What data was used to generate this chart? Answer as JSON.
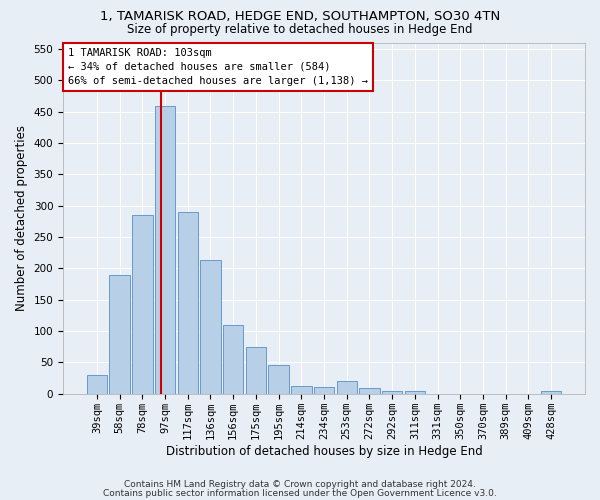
{
  "title": "1, TAMARISK ROAD, HEDGE END, SOUTHAMPTON, SO30 4TN",
  "subtitle": "Size of property relative to detached houses in Hedge End",
  "xlabel": "Distribution of detached houses by size in Hedge End",
  "ylabel": "Number of detached properties",
  "categories": [
    "39sqm",
    "58sqm",
    "78sqm",
    "97sqm",
    "117sqm",
    "136sqm",
    "156sqm",
    "175sqm",
    "195sqm",
    "214sqm",
    "234sqm",
    "253sqm",
    "272sqm",
    "292sqm",
    "311sqm",
    "331sqm",
    "350sqm",
    "370sqm",
    "389sqm",
    "409sqm",
    "428sqm"
  ],
  "values": [
    30,
    190,
    285,
    458,
    290,
    213,
    110,
    74,
    46,
    13,
    11,
    21,
    10,
    5,
    5,
    0,
    0,
    0,
    0,
    0,
    5
  ],
  "bar_color": "#b8cfe8",
  "bar_edge_color": "#6699cc",
  "marker_bin_index": 3,
  "annotation_line1": "1 TAMARISK ROAD: 103sqm",
  "annotation_line2": "← 34% of detached houses are smaller (584)",
  "annotation_line3": "66% of semi-detached houses are larger (1,138) →",
  "ylim": [
    0,
    560
  ],
  "yticks": [
    0,
    50,
    100,
    150,
    200,
    250,
    300,
    350,
    400,
    450,
    500,
    550
  ],
  "footer1": "Contains HM Land Registry data © Crown copyright and database right 2024.",
  "footer2": "Contains public sector information licensed under the Open Government Licence v3.0.",
  "title_fontsize": 9.5,
  "subtitle_fontsize": 8.5,
  "ylabel_fontsize": 8.5,
  "xlabel_fontsize": 8.5,
  "tick_fontsize": 7.5,
  "annotation_fontsize": 7.5,
  "footer_fontsize": 6.5,
  "background_color": "#e8eef5",
  "grid_color": "#ffffff",
  "red_line_color": "#cc0000"
}
